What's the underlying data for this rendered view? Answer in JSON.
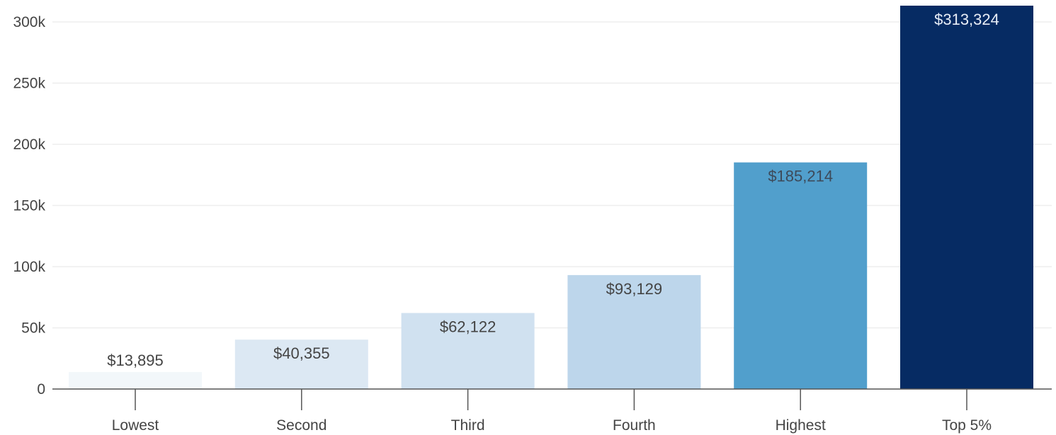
{
  "chart_data": {
    "type": "bar",
    "categories": [
      "Lowest",
      "Second",
      "Third",
      "Fourth",
      "Highest",
      "Top 5%"
    ],
    "values": [
      13895,
      40355,
      62122,
      93129,
      185214,
      313324
    ],
    "data_labels": [
      "$13,895",
      "$40,355",
      "$62,122",
      "$93,129",
      "$185,214",
      "$313,324"
    ],
    "bar_colors": [
      "#f2f7fa",
      "#dce8f3",
      "#d0e1f0",
      "#bdd6eb",
      "#519fcc",
      "#062b63"
    ],
    "label_colors": [
      "#444444",
      "#444444",
      "#444444",
      "#444444",
      "#3d4a5a",
      "#e8eef7"
    ],
    "ylim": [
      0,
      313324
    ],
    "yticks": [
      0,
      50000,
      100000,
      150000,
      200000,
      250000,
      300000
    ],
    "ytick_labels": [
      "0",
      "50k",
      "100k",
      "150k",
      "200k",
      "250k",
      "300k"
    ],
    "title": "",
    "xlabel": "",
    "ylabel": "",
    "grid": true,
    "legend": false
  }
}
